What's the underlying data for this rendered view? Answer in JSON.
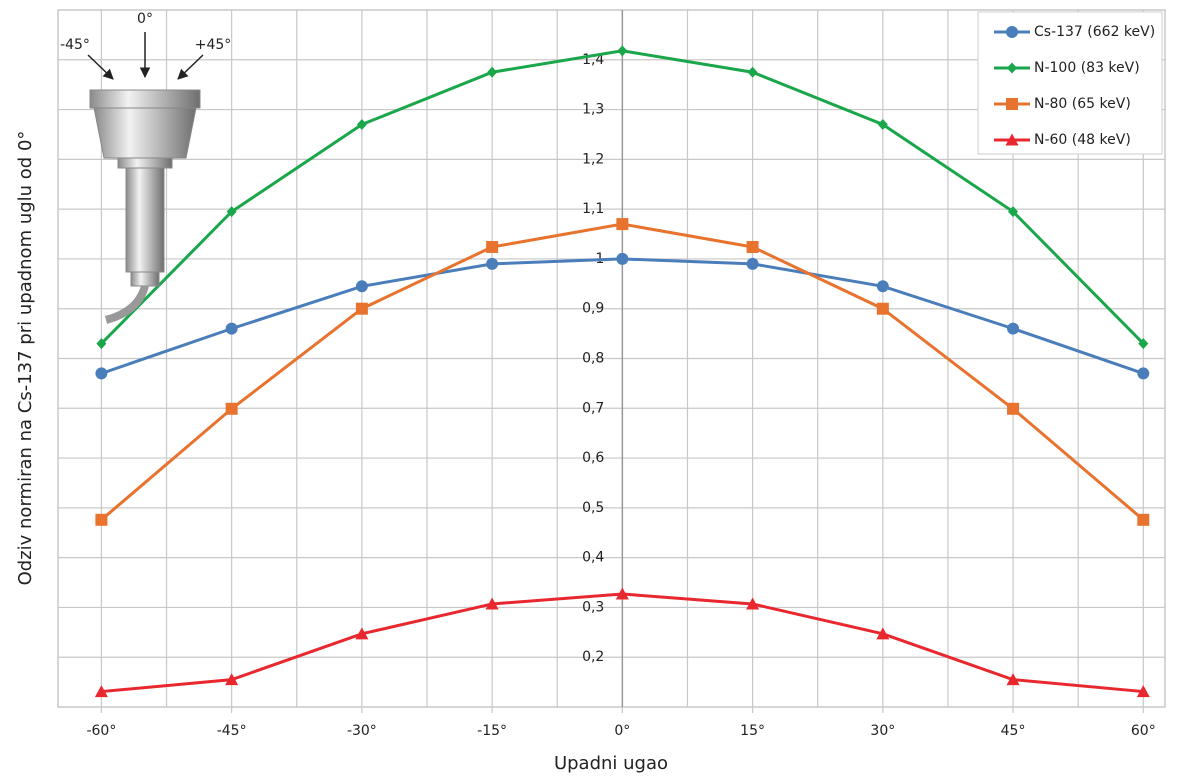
{
  "chart_data": {
    "type": "line",
    "y_label": "Odziv normiran na Cs-137 pri upadnom uglu od 0°",
    "x_label": "Upadni ugao",
    "x": [
      -60,
      -45,
      -30,
      -15,
      0,
      15,
      30,
      45,
      60
    ],
    "xlim": [
      -65,
      62.5
    ],
    "xticks": [
      {
        "value": -60,
        "label": "-60°"
      },
      {
        "value": -45,
        "label": "-45°"
      },
      {
        "value": -30,
        "label": "-30°"
      },
      {
        "value": -15,
        "label": "-15°"
      },
      {
        "value": 0,
        "label": "0°"
      },
      {
        "value": 15,
        "label": "15°"
      },
      {
        "value": 30,
        "label": "30°"
      },
      {
        "value": 45,
        "label": "45°"
      },
      {
        "value": 60,
        "label": "60°"
      }
    ],
    "ylim": [
      0.1,
      1.5
    ],
    "yticks": [
      {
        "value": 0.2,
        "label": "0,2"
      },
      {
        "value": 0.3,
        "label": "0,3"
      },
      {
        "value": 0.4,
        "label": "0,4"
      },
      {
        "value": 0.5,
        "label": "0,5"
      },
      {
        "value": 0.6,
        "label": "0,6"
      },
      {
        "value": 0.7,
        "label": "0,7"
      },
      {
        "value": 0.8,
        "label": "0,8"
      },
      {
        "value": 0.9,
        "label": "0,9"
      },
      1,
      {
        "value": 1.1,
        "label": "1,1"
      },
      {
        "value": 1.2,
        "label": "1,2"
      },
      {
        "value": 1.3,
        "label": "1,3"
      },
      {
        "value": 1.4,
        "label": "1,4"
      }
    ],
    "grid": true,
    "legend": "top-right",
    "series": [
      {
        "name": "Cs-137 (662 keV)",
        "color": "#4a7ebb",
        "marker": "circle",
        "values": [
          0.77,
          0.86,
          0.945,
          0.99,
          1.0,
          0.99,
          0.945,
          0.86,
          0.77
        ]
      },
      {
        "name": "N-100 (83 keV)",
        "color": "#1aa64a",
        "marker": "diamond",
        "values": [
          0.83,
          1.095,
          1.27,
          1.375,
          1.418,
          1.375,
          1.27,
          1.095,
          0.83
        ]
      },
      {
        "name": "N-80 (65 keV)",
        "color": "#e8732e",
        "marker": "square",
        "values": [
          0.476,
          0.699,
          0.9,
          1.024,
          1.07,
          1.024,
          0.9,
          0.699,
          0.476
        ]
      },
      {
        "name": "N-60 (48 keV)",
        "color": "#e8282e",
        "marker": "triangle",
        "values": [
          0.131,
          0.155,
          0.247,
          0.307,
          0.327,
          0.307,
          0.247,
          0.155,
          0.131
        ]
      }
    ],
    "illustration": {
      "labels": [
        "-45°",
        "0°",
        "+45°"
      ]
    }
  }
}
